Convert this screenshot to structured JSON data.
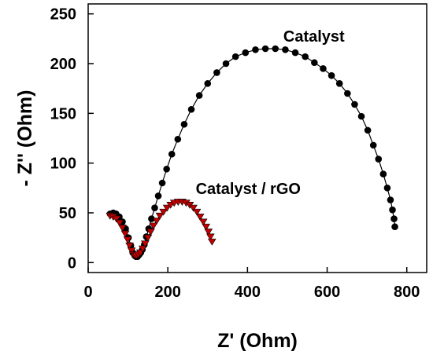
{
  "chart_data": {
    "type": "scatter",
    "xlabel": "Z' (Ohm)",
    "ylabel": "- Z'' (Ohm)",
    "xlim": [
      0,
      850
    ],
    "ylim": [
      -10,
      260
    ],
    "xticks": [
      "0",
      "200",
      "400",
      "600",
      "800"
    ],
    "yticks": [
      "0",
      "50",
      "100",
      "150",
      "200",
      "250"
    ],
    "annotations": [
      {
        "text": "Catalyst",
        "x": 490,
        "y": 222
      },
      {
        "text": "Catalyst / rGO",
        "x": 270,
        "y": 69
      }
    ],
    "series": [
      {
        "name": "Catalyst",
        "marker": "circle",
        "color": "#000000",
        "points": [
          [
            55,
            49
          ],
          [
            63,
            50
          ],
          [
            70,
            49
          ],
          [
            78,
            46
          ],
          [
            86,
            41
          ],
          [
            94,
            34
          ],
          [
            101,
            25
          ],
          [
            107,
            17
          ],
          [
            112,
            10
          ],
          [
            117,
            7
          ],
          [
            120,
            6
          ],
          [
            124,
            6
          ],
          [
            128,
            8
          ],
          [
            132,
            10
          ],
          [
            136,
            13
          ],
          [
            141,
            18
          ],
          [
            146,
            26
          ],
          [
            152,
            34
          ],
          [
            159,
            44
          ],
          [
            167,
            55
          ],
          [
            176,
            67
          ],
          [
            186,
            80
          ],
          [
            197,
            94
          ],
          [
            210,
            109
          ],
          [
            225,
            124
          ],
          [
            241,
            139
          ],
          [
            259,
            154
          ],
          [
            279,
            168
          ],
          [
            300,
            180
          ],
          [
            323,
            191
          ],
          [
            346,
            200
          ],
          [
            370,
            207
          ],
          [
            395,
            211
          ],
          [
            420,
            214
          ],
          [
            445,
            215
          ],
          [
            470,
            215
          ],
          [
            495,
            214
          ],
          [
            520,
            211
          ],
          [
            545,
            207
          ],
          [
            568,
            201
          ],
          [
            590,
            195
          ],
          [
            611,
            188
          ],
          [
            631,
            180
          ],
          [
            651,
            170
          ],
          [
            669,
            159
          ],
          [
            686,
            147
          ],
          [
            702,
            133
          ],
          [
            716,
            118
          ],
          [
            729,
            104
          ],
          [
            741,
            89
          ],
          [
            751,
            75
          ],
          [
            759,
            63
          ],
          [
            764,
            53
          ],
          [
            768,
            44
          ],
          [
            770,
            36
          ]
        ]
      },
      {
        "name": "Catalyst / rGO",
        "marker": "triangle-down",
        "color": "#c00000",
        "points": [
          [
            55,
            47
          ],
          [
            63,
            46
          ],
          [
            71,
            44
          ],
          [
            79,
            40
          ],
          [
            86,
            35
          ],
          [
            93,
            29
          ],
          [
            99,
            23
          ],
          [
            104,
            17
          ],
          [
            109,
            12
          ],
          [
            113,
            8
          ],
          [
            117,
            7
          ],
          [
            121,
            7
          ],
          [
            126,
            8
          ],
          [
            131,
            10
          ],
          [
            137,
            14
          ],
          [
            143,
            19
          ],
          [
            150,
            25
          ],
          [
            157,
            31
          ],
          [
            164,
            37
          ],
          [
            172,
            42
          ],
          [
            180,
            47
          ],
          [
            189,
            51
          ],
          [
            198,
            55
          ],
          [
            207,
            58
          ],
          [
            216,
            60
          ],
          [
            226,
            61
          ],
          [
            236,
            61
          ],
          [
            246,
            60
          ],
          [
            255,
            58
          ],
          [
            264,
            55
          ],
          [
            273,
            51
          ],
          [
            281,
            46
          ],
          [
            289,
            41
          ],
          [
            296,
            36
          ],
          [
            302,
            31
          ],
          [
            307,
            26
          ],
          [
            311,
            21
          ]
        ]
      }
    ]
  }
}
